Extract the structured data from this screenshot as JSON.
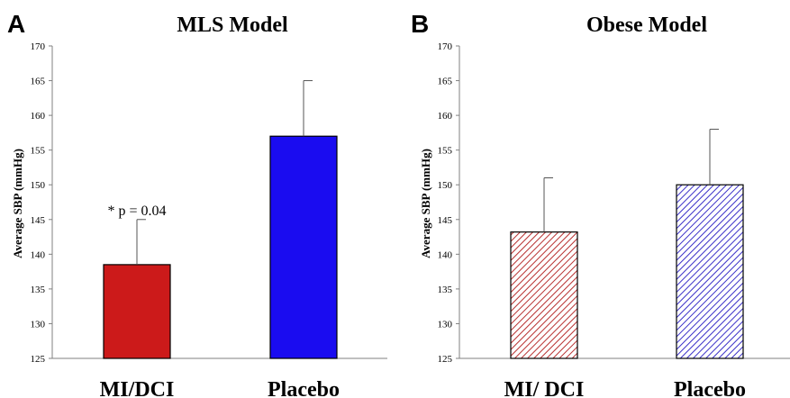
{
  "chart_data": [
    {
      "type": "bar",
      "panel_label": "A",
      "title": "MLS Model",
      "ylabel": "Average SBP (mmHg)",
      "xlabel": "",
      "ylim": [
        125,
        170
      ],
      "yticks": [
        125,
        130,
        135,
        140,
        145,
        150,
        155,
        160,
        165,
        170
      ],
      "categories": [
        "MI/DCI",
        "Placebo"
      ],
      "values": [
        138.5,
        157
      ],
      "error_upper": [
        145,
        165
      ],
      "bar_colors": [
        "#cc1a1a",
        "#1a0cf0"
      ],
      "bar_fill": [
        "solid",
        "solid"
      ],
      "annotations": [
        {
          "category": "MI/DCI",
          "text": "* p = 0.04"
        }
      ],
      "grid": false
    },
    {
      "type": "bar",
      "panel_label": "B",
      "title": "Obese Model",
      "ylabel": "Average SBP (mmHg)",
      "xlabel": "",
      "ylim": [
        125,
        170
      ],
      "yticks": [
        125,
        130,
        135,
        140,
        145,
        150,
        155,
        160,
        165,
        170
      ],
      "categories": [
        "MI/ DCI",
        "Placebo"
      ],
      "values": [
        143.2,
        150
      ],
      "error_upper": [
        151,
        158
      ],
      "bar_colors": [
        "#b83030",
        "#3a30c8"
      ],
      "bar_fill": [
        "hatched",
        "hatched"
      ],
      "annotations": [],
      "grid": false
    }
  ]
}
